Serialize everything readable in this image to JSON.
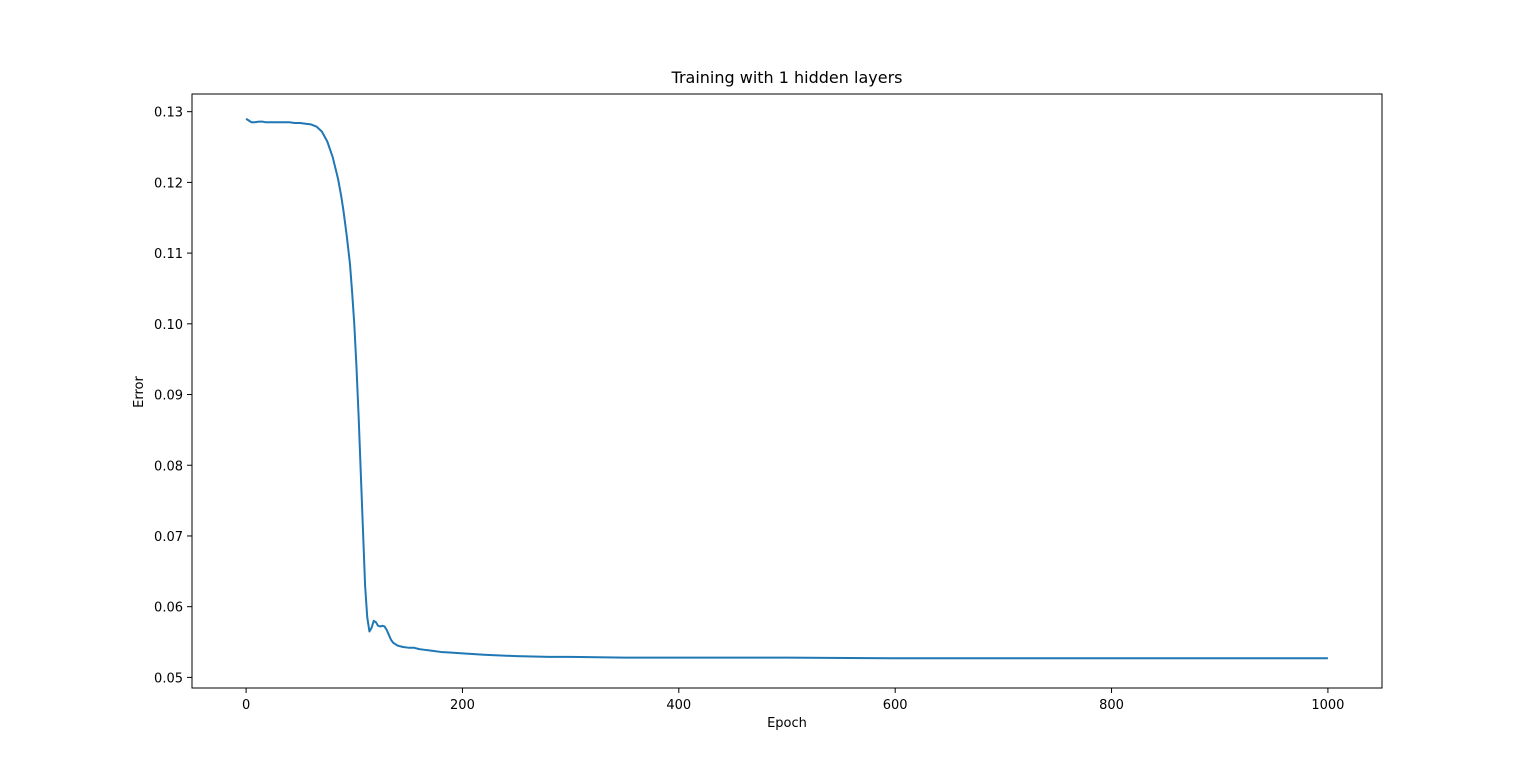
{
  "chart_data": {
    "type": "line",
    "title": "Training with 1 hidden layers",
    "xlabel": "Epoch",
    "ylabel": "Error",
    "xlim": [
      -50,
      1050
    ],
    "ylim": [
      0.0485,
      0.1325
    ],
    "xticks": [
      0,
      200,
      400,
      600,
      800,
      1000
    ],
    "yticks": [
      0.05,
      0.06,
      0.07,
      0.08,
      0.09,
      0.1,
      0.11,
      0.12,
      0.13
    ],
    "xtick_labels": [
      "0",
      "200",
      "400",
      "600",
      "800",
      "1000"
    ],
    "ytick_labels": [
      "0.05",
      "0.06",
      "0.07",
      "0.08",
      "0.09",
      "0.10",
      "0.11",
      "0.12",
      "0.13"
    ],
    "grid": false,
    "colors": {
      "line": "#1f77b4",
      "axes": "#000000"
    },
    "series": [
      {
        "x": [
          0,
          3,
          5,
          8,
          12,
          15,
          18,
          22,
          25,
          30,
          35,
          40,
          45,
          50,
          55,
          60,
          65,
          70,
          75,
          80,
          85,
          88,
          90,
          93,
          96,
          98,
          100,
          102,
          104,
          106,
          108,
          110,
          112,
          114,
          116,
          118,
          120,
          122,
          124,
          126,
          128,
          130,
          132,
          134,
          136,
          138,
          140,
          145,
          150,
          155,
          160,
          165,
          170,
          180,
          190,
          200,
          220,
          250,
          280,
          300,
          350,
          400,
          450,
          500,
          600,
          700,
          800,
          900,
          1000
        ],
        "y": [
          0.129,
          0.1287,
          0.1285,
          0.1285,
          0.1286,
          0.1286,
          0.1285,
          0.1285,
          0.1285,
          0.1285,
          0.1285,
          0.1285,
          0.1284,
          0.1284,
          0.1283,
          0.1282,
          0.1279,
          0.1272,
          0.1258,
          0.1236,
          0.1205,
          0.118,
          0.116,
          0.1125,
          0.1085,
          0.1045,
          0.1,
          0.094,
          0.087,
          0.079,
          0.071,
          0.063,
          0.0585,
          0.0565,
          0.057,
          0.058,
          0.0578,
          0.0573,
          0.0572,
          0.0573,
          0.0572,
          0.0567,
          0.056,
          0.0553,
          0.0549,
          0.0547,
          0.0545,
          0.0543,
          0.0542,
          0.0542,
          0.054,
          0.0539,
          0.0538,
          0.0536,
          0.0535,
          0.0534,
          0.0532,
          0.053,
          0.0529,
          0.0529,
          0.0528,
          0.0528,
          0.0528,
          0.0528,
          0.0527,
          0.0527,
          0.0527,
          0.0527,
          0.0527
        ]
      }
    ]
  }
}
